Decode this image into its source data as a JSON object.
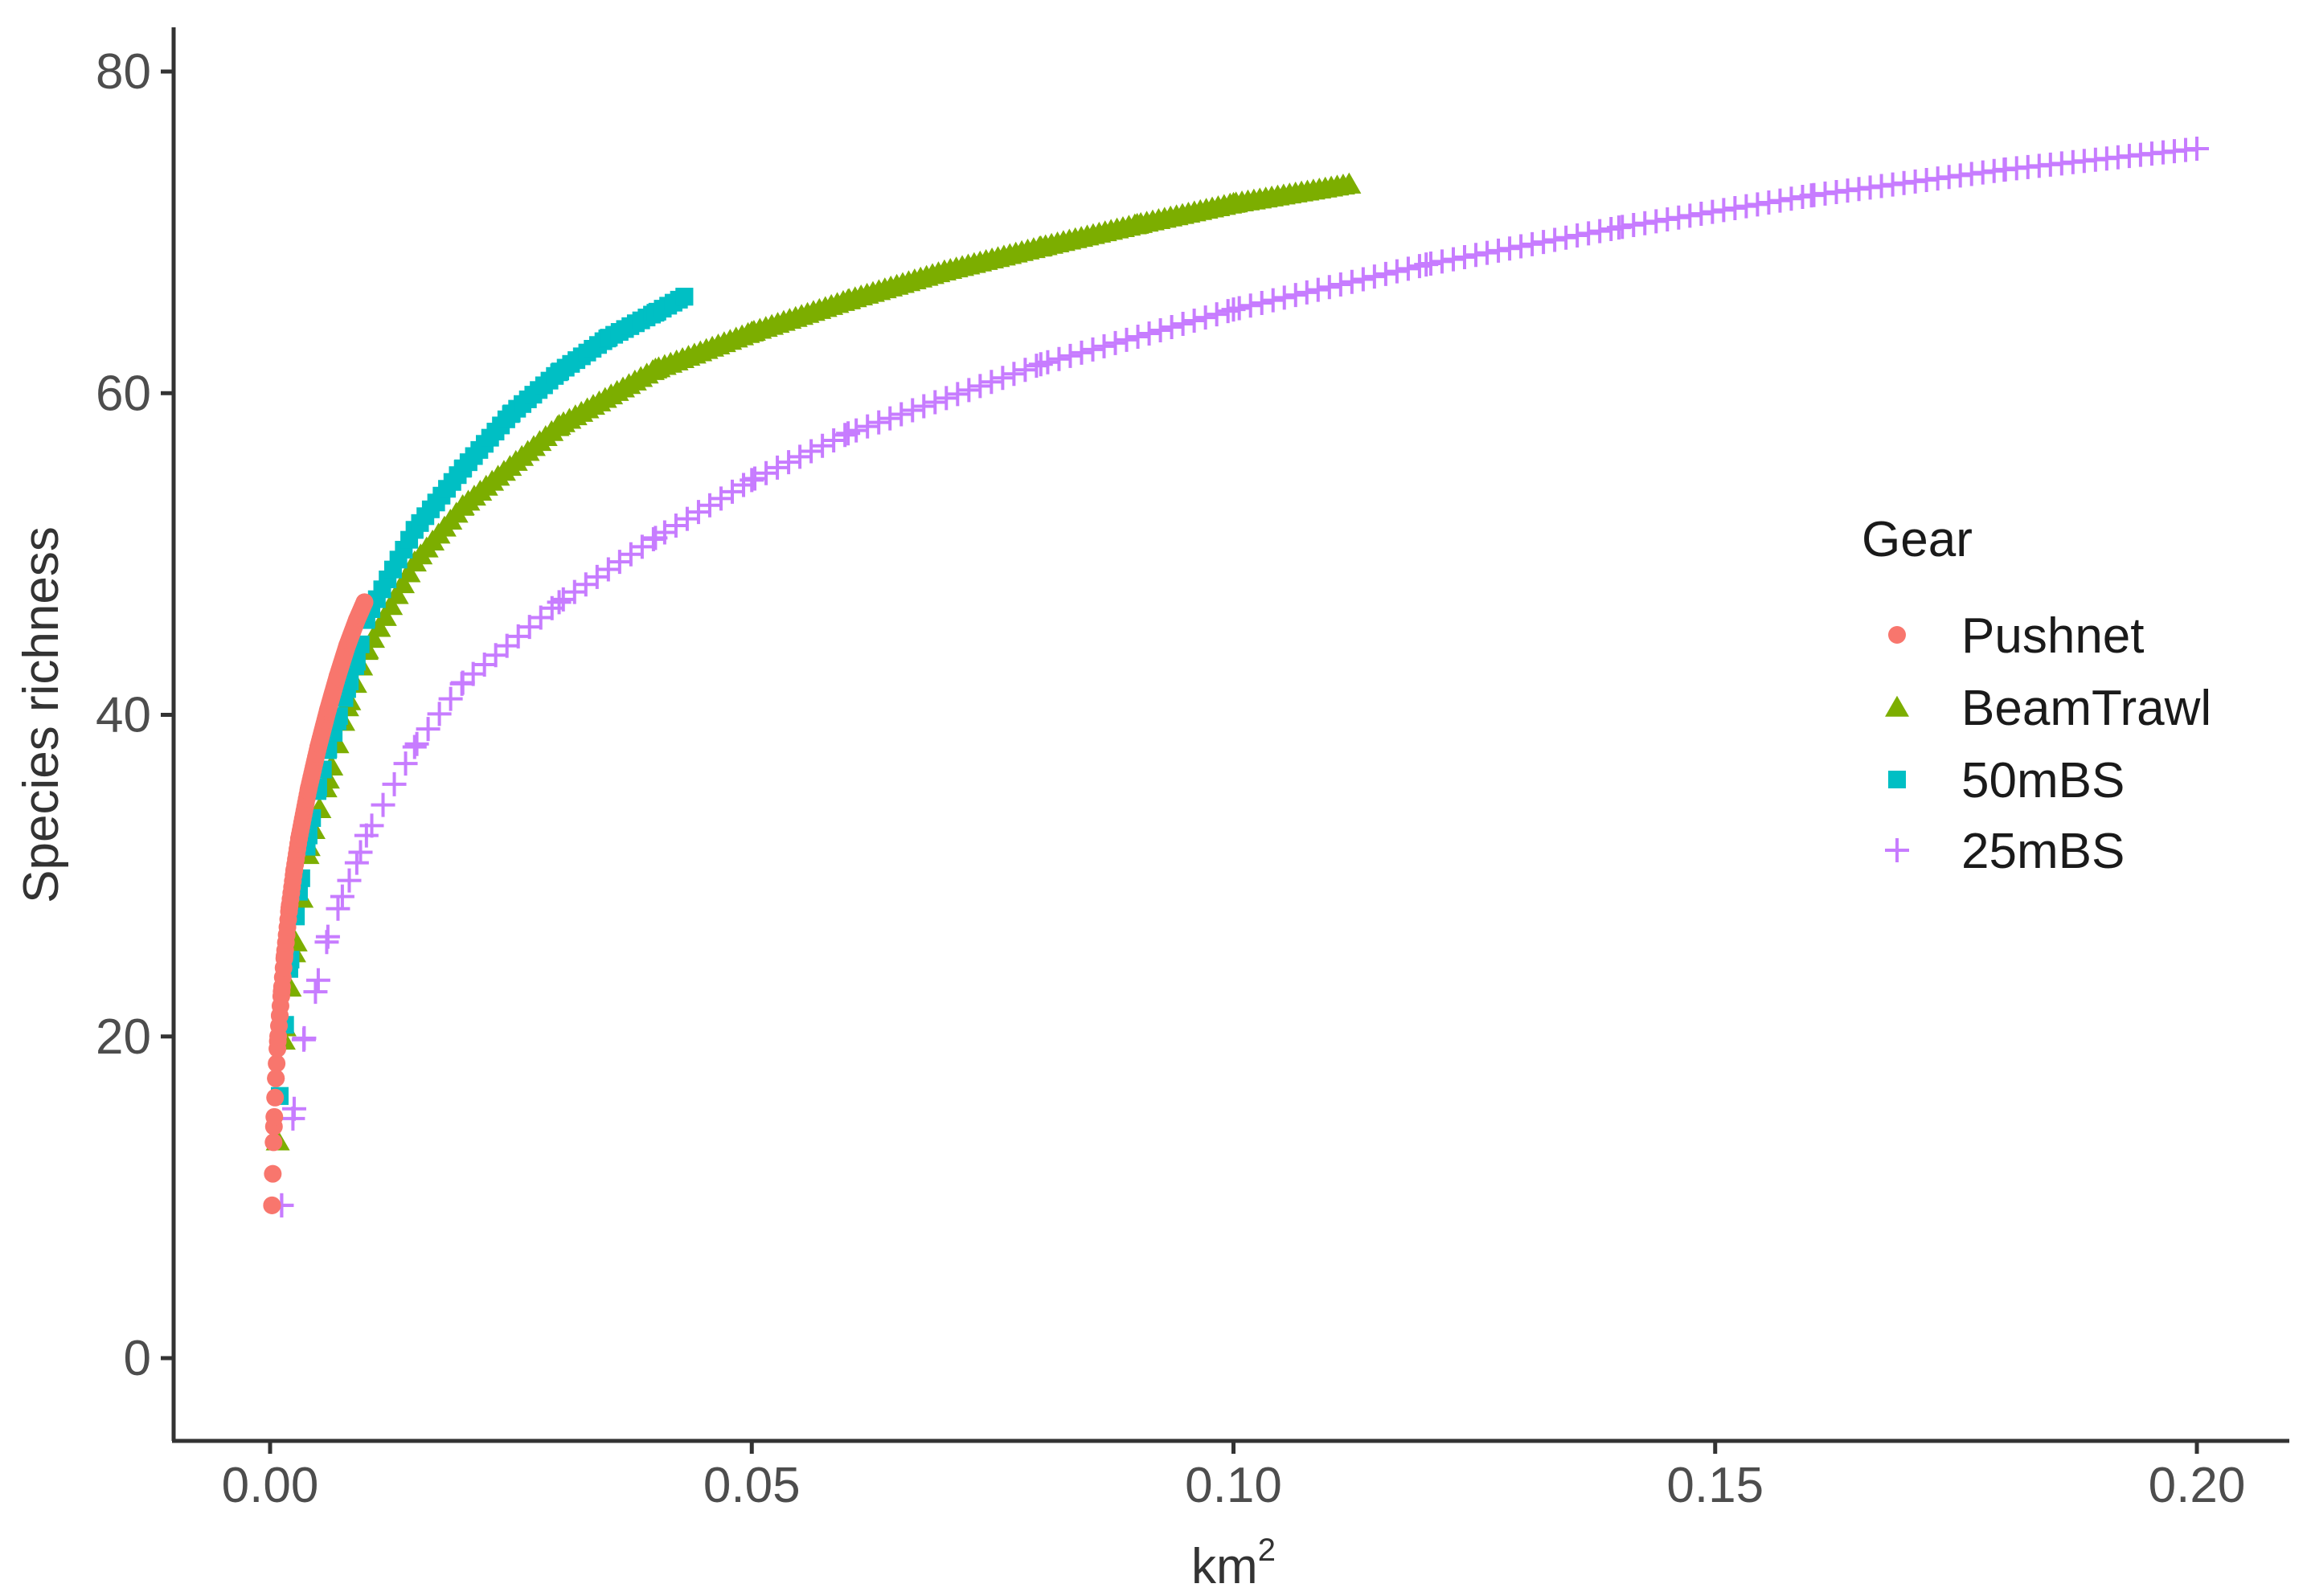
{
  "chart_data": {
    "type": "scatter",
    "xlabel": "km",
    "xlabel_superscript": "2",
    "ylabel": "Species richness",
    "xlim": [
      -0.01,
      0.21
    ],
    "ylim": [
      -5,
      82
    ],
    "x_ticks": [
      0.0,
      0.05,
      0.1,
      0.15,
      0.2
    ],
    "x_tick_labels": [
      "0.00",
      "0.05",
      "0.10",
      "0.15",
      "0.20"
    ],
    "y_ticks": [
      0,
      20,
      40,
      60,
      80
    ],
    "y_tick_labels": [
      "0",
      "20",
      "40",
      "60",
      "80"
    ],
    "grid": false,
    "legend": {
      "title": "Gear",
      "placement": "right"
    },
    "series": [
      {
        "name": "Pushnet",
        "shape": "circle",
        "color": "#F8766D",
        "x_max": 0.0098,
        "points": [
          [
            0.0002,
            9.5
          ],
          [
            0.0004,
            14.4
          ],
          [
            0.0006,
            17.4
          ],
          [
            0.0008,
            19.7
          ],
          [
            0.001,
            21.3
          ],
          [
            0.0012,
            22.8
          ],
          [
            0.0015,
            25.0
          ],
          [
            0.002,
            28.0
          ],
          [
            0.0025,
            30.3
          ],
          [
            0.003,
            32.3
          ],
          [
            0.004,
            35.4
          ],
          [
            0.005,
            38.0
          ],
          [
            0.006,
            40.3
          ],
          [
            0.007,
            42.4
          ],
          [
            0.008,
            44.3
          ],
          [
            0.009,
            45.9
          ],
          [
            0.0098,
            47.0
          ]
        ]
      },
      {
        "name": "BeamTrawl",
        "shape": "triangle",
        "color": "#7CAE00",
        "x_max": 0.112,
        "points": [
          [
            0.0008,
            13.5
          ],
          [
            0.0015,
            20.6
          ],
          [
            0.0025,
            25.2
          ],
          [
            0.004,
            31.8
          ],
          [
            0.006,
            36.0
          ],
          [
            0.008,
            40.5
          ],
          [
            0.01,
            44.0
          ],
          [
            0.015,
            49.5
          ],
          [
            0.02,
            53.0
          ],
          [
            0.03,
            58.0
          ],
          [
            0.04,
            61.5
          ],
          [
            0.05,
            63.8
          ],
          [
            0.06,
            65.8
          ],
          [
            0.07,
            67.6
          ],
          [
            0.08,
            69.1
          ],
          [
            0.09,
            70.5
          ],
          [
            0.1,
            71.8
          ],
          [
            0.112,
            73.0
          ]
        ]
      },
      {
        "name": "50mBS",
        "shape": "square",
        "color": "#00BFC4",
        "x_max": 0.043,
        "points": [
          [
            0.001,
            16.3
          ],
          [
            0.002,
            24.2
          ],
          [
            0.003,
            29.0
          ],
          [
            0.004,
            32.5
          ],
          [
            0.005,
            35.5
          ],
          [
            0.006,
            37.8
          ],
          [
            0.007,
            39.6
          ],
          [
            0.008,
            41.6
          ],
          [
            0.009,
            43.3
          ],
          [
            0.01,
            46.0
          ],
          [
            0.015,
            51.5
          ],
          [
            0.02,
            55.3
          ],
          [
            0.025,
            58.7
          ],
          [
            0.03,
            61.3
          ],
          [
            0.035,
            63.4
          ],
          [
            0.04,
            65.0
          ],
          [
            0.043,
            66.0
          ]
        ]
      },
      {
        "name": "25mBS",
        "shape": "cross",
        "color": "#C77CFF",
        "x_max": 0.2,
        "points": [
          [
            0.0012,
            9.5
          ],
          [
            0.0025,
            15.5
          ],
          [
            0.0035,
            19.8
          ],
          [
            0.005,
            23.5
          ],
          [
            0.006,
            26.2
          ],
          [
            0.0075,
            28.7
          ],
          [
            0.009,
            30.8
          ],
          [
            0.01,
            32.5
          ],
          [
            0.015,
            38.0
          ],
          [
            0.02,
            42.0
          ],
          [
            0.03,
            47.0
          ],
          [
            0.04,
            51.0
          ],
          [
            0.05,
            54.6
          ],
          [
            0.06,
            57.5
          ],
          [
            0.08,
            61.8
          ],
          [
            0.1,
            65.2
          ],
          [
            0.12,
            68.0
          ],
          [
            0.14,
            70.3
          ],
          [
            0.16,
            72.3
          ],
          [
            0.18,
            73.9
          ],
          [
            0.2,
            75.2
          ]
        ]
      }
    ]
  }
}
